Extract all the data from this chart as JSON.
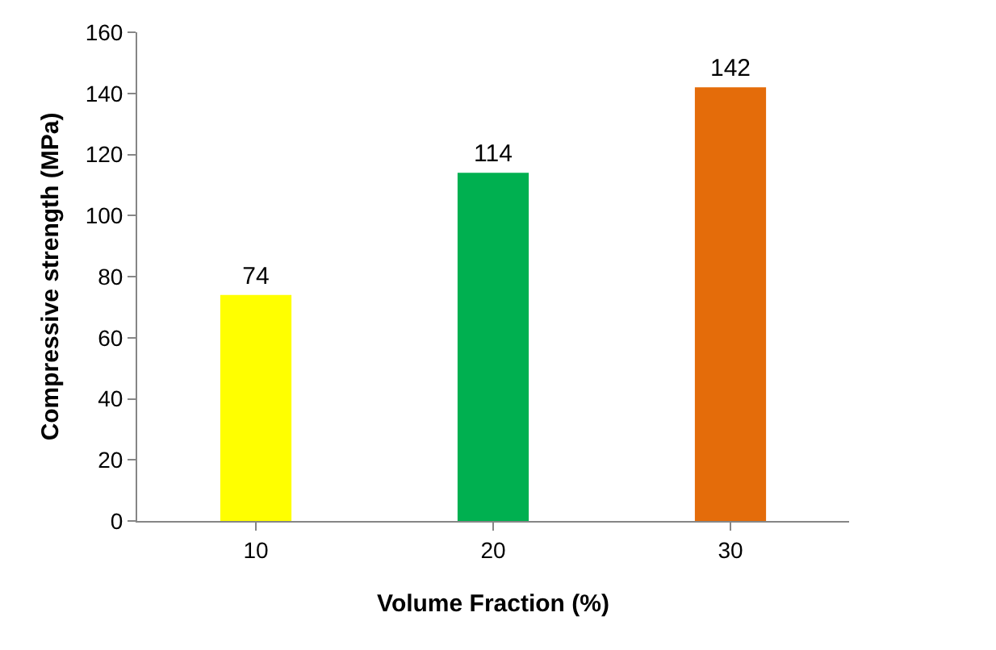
{
  "chart_data": {
    "type": "bar",
    "xlabel": "Volume Fraction (%)",
    "ylabel": "Compressive strength (MPa)",
    "categories": [
      "10",
      "20",
      "30"
    ],
    "values": [
      74,
      114,
      142
    ],
    "colors": [
      "#ffff00",
      "#00b050",
      "#e46c0a"
    ],
    "ylim": [
      0,
      160
    ],
    "yticks": [
      0,
      20,
      40,
      60,
      80,
      100,
      120,
      140,
      160
    ],
    "data_labels": true,
    "grid": false
  }
}
